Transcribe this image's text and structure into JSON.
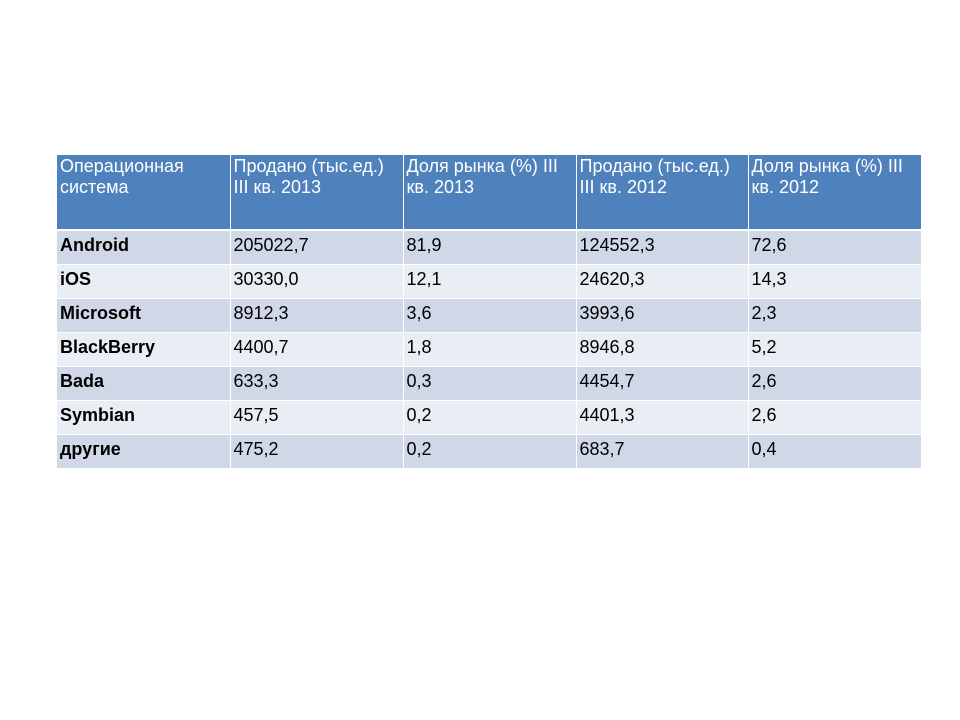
{
  "table": {
    "headers": [
      "Операционная система",
      "Продано (тыс.ед.) III кв. 2013",
      "Доля рынка (%) III кв. 2013",
      "Продано (тыс.ед.) III кв. 2012",
      "Доля рынка (%) III кв. 2012"
    ],
    "rows": [
      [
        "Android",
        "205022,7",
        "81,9",
        "124552,3",
        "72,6"
      ],
      [
        "iOS",
        "30330,0",
        "12,1",
        "24620,3",
        "14,3"
      ],
      [
        "Microsoft",
        "8912,3",
        "3,6",
        "3993,6",
        "2,3"
      ],
      [
        "BlackBerry",
        "4400,7",
        "1,8",
        "8946,8",
        "5,2"
      ],
      [
        "Bada",
        "633,3",
        "0,3",
        "4454,7",
        "2,6"
      ],
      [
        "Symbian",
        "457,5",
        "0,2",
        "4401,3",
        "2,6"
      ],
      [
        "другие",
        "475,2",
        "0,2",
        "683,7",
        "0,4"
      ]
    ]
  },
  "colors": {
    "header_bg": "#4f81bd",
    "header_text": "#ffffff",
    "row_band_dark": "#d0d8e8",
    "row_band_light": "#e9edf4"
  }
}
